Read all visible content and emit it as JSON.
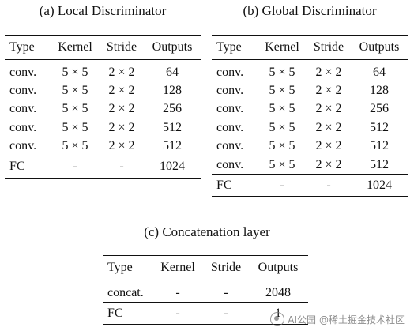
{
  "table_a": {
    "caption": "(a) Local Discriminator",
    "headers": [
      "Type",
      "Kernel",
      "Stride",
      "Outputs"
    ],
    "rows": [
      [
        "conv.",
        "5 × 5",
        "2 × 2",
        "64"
      ],
      [
        "conv.",
        "5 × 5",
        "2 × 2",
        "128"
      ],
      [
        "conv.",
        "5 × 5",
        "2 × 2",
        "256"
      ],
      [
        "conv.",
        "5 × 5",
        "2 × 2",
        "512"
      ],
      [
        "conv.",
        "5 × 5",
        "2 × 2",
        "512"
      ],
      [
        "FC",
        "-",
        "-",
        "1024"
      ]
    ]
  },
  "table_b": {
    "caption": "(b) Global Discriminator",
    "headers": [
      "Type",
      "Kernel",
      "Stride",
      "Outputs"
    ],
    "rows": [
      [
        "conv.",
        "5 × 5",
        "2 × 2",
        "64"
      ],
      [
        "conv.",
        "5 × 5",
        "2 × 2",
        "128"
      ],
      [
        "conv.",
        "5 × 5",
        "2 × 2",
        "256"
      ],
      [
        "conv.",
        "5 × 5",
        "2 × 2",
        "512"
      ],
      [
        "conv.",
        "5 × 5",
        "2 × 2",
        "512"
      ],
      [
        "conv.",
        "5 × 5",
        "2 × 2",
        "512"
      ],
      [
        "FC",
        "-",
        "-",
        "1024"
      ]
    ]
  },
  "table_c": {
    "caption": "(c) Concatenation layer",
    "headers": [
      "Type",
      "Kernel",
      "Stride",
      "Outputs"
    ],
    "rows": [
      [
        "concat.",
        "-",
        "-",
        "2048"
      ],
      [
        "FC",
        "-",
        "-",
        "1"
      ]
    ]
  },
  "watermark": {
    "text": "@稀土掘金技术社区",
    "brand": "AI公园",
    "icon": "wechat-logo-icon"
  }
}
